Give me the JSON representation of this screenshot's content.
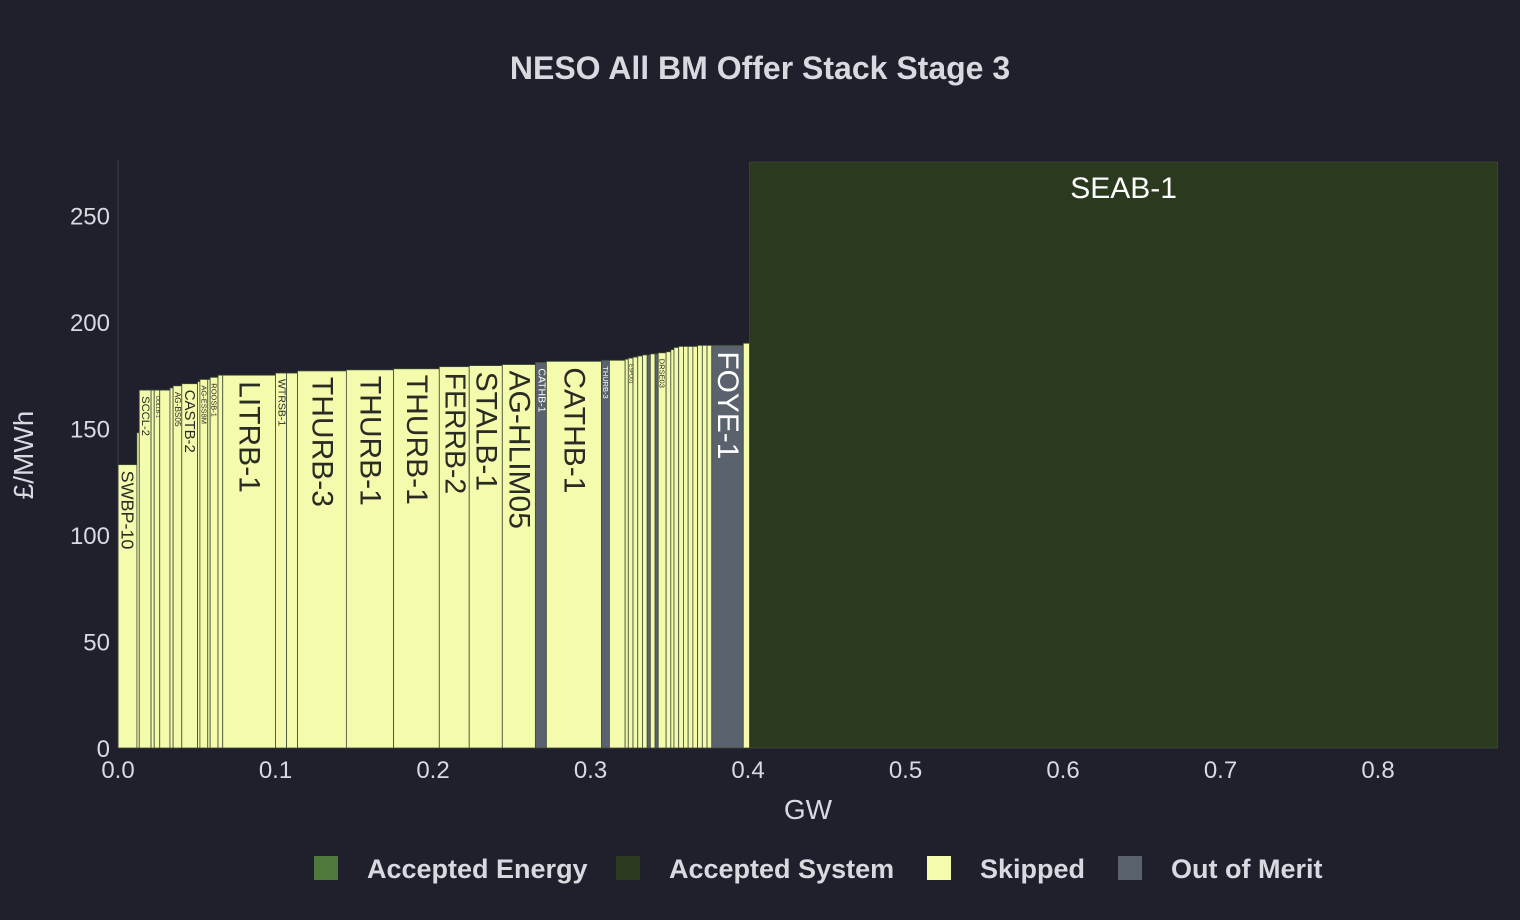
{
  "colors": {
    "background": "#1f202c",
    "text": "#d9d9e0",
    "accepted_energy": "#4e7a3c",
    "accepted_system": "#2b3a1e",
    "skipped": "#f4fbac",
    "out_of_merit": "#5a636d",
    "bar_edge": "#3d4a36"
  },
  "chart_data": {
    "type": "bar",
    "title": "NESO All BM Offer Stack Stage 3",
    "xlabel": "GW",
    "ylabel": "£/MWh",
    "xlim": [
      0,
      0.88
    ],
    "ylim": [
      0,
      276
    ],
    "x_ticks": [
      "0.0",
      "0.1",
      "0.2",
      "0.3",
      "0.4",
      "0.5",
      "0.6",
      "0.7",
      "0.8"
    ],
    "y_ticks": [
      "0",
      "50",
      "100",
      "150",
      "200",
      "250"
    ],
    "grid": false,
    "legend_position": "bottom",
    "legend": [
      {
        "name": "Accepted Energy",
        "color_key": "accepted_energy"
      },
      {
        "name": "Accepted System",
        "color_key": "accepted_system"
      },
      {
        "name": "Skipped",
        "color_key": "skipped"
      },
      {
        "name": "Out of Merit",
        "color_key": "out_of_merit"
      }
    ],
    "bars": [
      {
        "label": "SWBP-10",
        "x0": 0.0,
        "x1": 0.012,
        "price": 133,
        "category": "skipped"
      },
      {
        "label": "",
        "x0": 0.012,
        "x1": 0.0135,
        "price": 148,
        "category": "skipped"
      },
      {
        "label": "SCCL-2",
        "x0": 0.0135,
        "x1": 0.021,
        "price": 168,
        "category": "skipped"
      },
      {
        "label": "",
        "x0": 0.021,
        "x1": 0.023,
        "price": 168,
        "category": "skipped"
      },
      {
        "label": "DOLLB-1",
        "x0": 0.023,
        "x1": 0.0265,
        "price": 168,
        "category": "skipped"
      },
      {
        "label": "",
        "x0": 0.0265,
        "x1": 0.033,
        "price": 168,
        "category": "skipped"
      },
      {
        "label": "",
        "x0": 0.033,
        "x1": 0.035,
        "price": 169,
        "category": "skipped"
      },
      {
        "label": "AG-BS05",
        "x0": 0.035,
        "x1": 0.0405,
        "price": 170,
        "category": "skipped"
      },
      {
        "label": "CASTB-2",
        "x0": 0.0405,
        "x1": 0.0505,
        "price": 171,
        "category": "skipped"
      },
      {
        "label": "",
        "x0": 0.0505,
        "x1": 0.052,
        "price": 172,
        "category": "skipped"
      },
      {
        "label": "AG-ESS8M",
        "x0": 0.052,
        "x1": 0.057,
        "price": 173,
        "category": "skipped"
      },
      {
        "label": "",
        "x0": 0.057,
        "x1": 0.0585,
        "price": 173,
        "category": "skipped"
      },
      {
        "label": "ROOSB-1",
        "x0": 0.0585,
        "x1": 0.0635,
        "price": 174,
        "category": "skipped"
      },
      {
        "label": "",
        "x0": 0.0635,
        "x1": 0.0665,
        "price": 175,
        "category": "skipped"
      },
      {
        "label": "LITRB-1",
        "x0": 0.0665,
        "x1": 0.1,
        "price": 175,
        "category": "skipped"
      },
      {
        "label": "WTRSB-1",
        "x0": 0.1,
        "x1": 0.107,
        "price": 176,
        "category": "skipped"
      },
      {
        "label": "",
        "x0": 0.107,
        "x1": 0.114,
        "price": 176,
        "category": "skipped"
      },
      {
        "label": "THURB-3",
        "x0": 0.114,
        "x1": 0.145,
        "price": 177,
        "category": "skipped"
      },
      {
        "label": "THURB-1",
        "x0": 0.145,
        "x1": 0.175,
        "price": 177.5,
        "category": "skipped"
      },
      {
        "label": "THURB-1",
        "x0": 0.175,
        "x1": 0.204,
        "price": 178,
        "category": "skipped"
      },
      {
        "label": "FERRB-2",
        "x0": 0.204,
        "x1": 0.223,
        "price": 179,
        "category": "skipped"
      },
      {
        "label": "STALB-1",
        "x0": 0.223,
        "x1": 0.244,
        "price": 179.5,
        "category": "skipped"
      },
      {
        "label": "AG-HLIM05",
        "x0": 0.244,
        "x1": 0.265,
        "price": 180,
        "category": "skipped"
      },
      {
        "label": "CATHB-1",
        "x0": 0.265,
        "x1": 0.272,
        "price": 181,
        "category": "out_of_merit"
      },
      {
        "label": "CATHB-1",
        "x0": 0.272,
        "x1": 0.307,
        "price": 181.5,
        "category": "skipped"
      },
      {
        "label": "THURB-3",
        "x0": 0.307,
        "x1": 0.312,
        "price": 182,
        "category": "out_of_merit"
      },
      {
        "label": "",
        "x0": 0.312,
        "x1": 0.322,
        "price": 182,
        "category": "skipped"
      },
      {
        "label": "",
        "x0": 0.322,
        "x1": 0.324,
        "price": 182.5,
        "category": "skipped"
      },
      {
        "label": "ESPO01",
        "x0": 0.324,
        "x1": 0.327,
        "price": 183,
        "category": "skipped"
      },
      {
        "label": "",
        "x0": 0.327,
        "x1": 0.33,
        "price": 183.5,
        "category": "skipped"
      },
      {
        "label": "",
        "x0": 0.33,
        "x1": 0.333,
        "price": 184,
        "category": "skipped"
      },
      {
        "label": "",
        "x0": 0.333,
        "x1": 0.336,
        "price": 184.5,
        "category": "skipped"
      },
      {
        "label": "",
        "x0": 0.336,
        "x1": 0.338,
        "price": 184.5,
        "category": "out_of_merit"
      },
      {
        "label": "",
        "x0": 0.338,
        "x1": 0.341,
        "price": 185,
        "category": "skipped"
      },
      {
        "label": "",
        "x0": 0.341,
        "x1": 0.343,
        "price": 185,
        "category": "out_of_merit"
      },
      {
        "label": "DRSE03",
        "x0": 0.343,
        "x1": 0.348,
        "price": 185.5,
        "category": "skipped"
      },
      {
        "label": "",
        "x0": 0.348,
        "x1": 0.351,
        "price": 186,
        "category": "skipped"
      },
      {
        "label": "",
        "x0": 0.351,
        "x1": 0.353,
        "price": 187,
        "category": "skipped"
      },
      {
        "label": "",
        "x0": 0.353,
        "x1": 0.356,
        "price": 188,
        "category": "skipped"
      },
      {
        "label": "",
        "x0": 0.356,
        "x1": 0.359,
        "price": 188.5,
        "category": "skipped"
      },
      {
        "label": "",
        "x0": 0.359,
        "x1": 0.362,
        "price": 188.5,
        "category": "skipped"
      },
      {
        "label": "",
        "x0": 0.362,
        "x1": 0.365,
        "price": 188.5,
        "category": "skipped"
      },
      {
        "label": "",
        "x0": 0.365,
        "x1": 0.368,
        "price": 188.5,
        "category": "skipped"
      },
      {
        "label": "",
        "x0": 0.368,
        "x1": 0.371,
        "price": 189,
        "category": "skipped"
      },
      {
        "label": "",
        "x0": 0.371,
        "x1": 0.374,
        "price": 189,
        "category": "skipped"
      },
      {
        "label": "",
        "x0": 0.374,
        "x1": 0.377,
        "price": 189,
        "category": "skipped"
      },
      {
        "label": "FOYE-1",
        "x0": 0.377,
        "x1": 0.397,
        "price": 189,
        "category": "out_of_merit"
      },
      {
        "label": "",
        "x0": 0.397,
        "x1": 0.401,
        "price": 190,
        "category": "skipped"
      },
      {
        "label": "SEAB-1",
        "x0": 0.401,
        "x1": 0.876,
        "price": 275,
        "category": "accepted_system"
      }
    ]
  }
}
